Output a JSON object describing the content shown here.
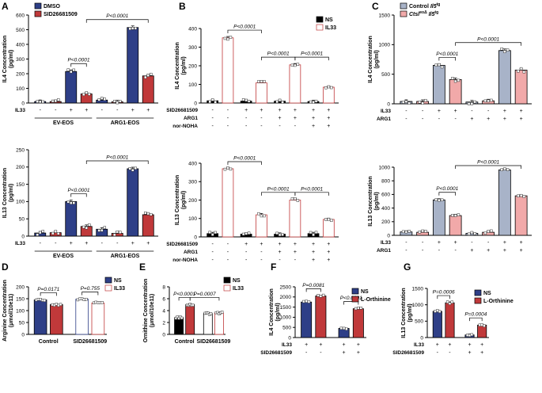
{
  "chart_data": [
    {
      "panel": "A",
      "type": "bar",
      "ylabel": "IL4 Concentration\n(pg/ml)",
      "ylim": [
        0,
        600
      ],
      "yticks": [
        0,
        100,
        200,
        300,
        400,
        500,
        600
      ],
      "legend": [
        {
          "name": "DMSO",
          "color": "#2e3f87"
        },
        {
          "name": "SID26681509",
          "color": "#c0393a"
        }
      ],
      "legend_position": "top-left",
      "conditions": {
        "IL33": [
          "-",
          "-",
          "+",
          "+",
          "-",
          "-",
          "+",
          "+"
        ]
      },
      "groups": [
        "EV-EOS",
        "ARG1-EOS"
      ],
      "series": [
        {
          "name": "DMSO",
          "values": [
            10,
            215,
            20,
            515
          ]
        },
        {
          "name": "SID26681509",
          "values": [
            10,
            62,
            8,
            185
          ]
        }
      ],
      "annotations": [
        {
          "text": "P<0.0001",
          "between": [
            2,
            3
          ]
        },
        {
          "text": "P<0.0001",
          "between": [
            3,
            7
          ]
        }
      ]
    },
    {
      "panel": "A",
      "type": "bar",
      "ylabel": "IL13 Concentration\n(pg/ml)",
      "ylim": [
        0,
        250
      ],
      "yticks": [
        0,
        50,
        100,
        150,
        200,
        250
      ],
      "conditions": {
        "IL33": [
          "-",
          "-",
          "+",
          "+",
          "-",
          "-",
          "+",
          "+"
        ]
      },
      "groups": [
        "EV-EOS",
        "ARG1-EOS"
      ],
      "series": [
        {
          "name": "DMSO",
          "values": [
            9,
            100,
            20,
            195
          ]
        },
        {
          "name": "SID26681509",
          "values": [
            10,
            28,
            8,
            62
          ]
        }
      ],
      "annotations": [
        {
          "text": "P<0.0001",
          "between": [
            2,
            3
          ]
        },
        {
          "text": "P<0.0001",
          "between": [
            3,
            7
          ]
        }
      ]
    },
    {
      "panel": "B",
      "type": "bar",
      "ylabel": "IL4 Concentration\n(pg/ml)",
      "ylim": [
        0,
        400
      ],
      "yticks": [
        0,
        100,
        200,
        300,
        400
      ],
      "legend": [
        {
          "name": "NS",
          "color": "#000000"
        },
        {
          "name": "IL33",
          "color": "#c0393a"
        }
      ],
      "legend_position": "top-right",
      "conditions": {
        "SID26681509": [
          "-",
          "-",
          "+",
          "+",
          "+",
          "+",
          "+",
          "+"
        ],
        "ARG1": [
          "-",
          "-",
          "-",
          "-",
          "+",
          "+",
          "+",
          "+"
        ],
        "nor-NOHA": [
          "-",
          "-",
          "-",
          "-",
          "-",
          "-",
          "+",
          "+"
        ]
      },
      "series": [
        {
          "name": "NS",
          "values": [
            12,
            10,
            10,
            8
          ]
        },
        {
          "name": "IL33",
          "values": [
            350,
            108,
            205,
            85
          ]
        }
      ],
      "annotations": [
        {
          "text": "P<0.0001",
          "between": [
            1,
            3
          ]
        },
        {
          "text": "P<0.0001",
          "between": [
            3,
            5
          ]
        },
        {
          "text": "P<0.0001",
          "between": [
            5,
            7
          ]
        }
      ]
    },
    {
      "panel": "B",
      "type": "bar",
      "ylabel": "IL13 Concentration\n(pg/ml)",
      "ylim": [
        0,
        400
      ],
      "yticks": [
        0,
        100,
        200,
        300,
        400
      ],
      "conditions": {
        "SID26681509": [
          "-",
          "-",
          "+",
          "+",
          "+",
          "+",
          "+",
          "+"
        ],
        "ARG1": [
          "-",
          "-",
          "-",
          "-",
          "+",
          "+",
          "+",
          "+"
        ],
        "nor-NOHA": [
          "-",
          "-",
          "-",
          "-",
          "-",
          "-",
          "+",
          "+"
        ]
      },
      "series": [
        {
          "name": "NS",
          "values": [
            18,
            15,
            15,
            18
          ]
        },
        {
          "name": "IL33",
          "values": [
            370,
            120,
            200,
            95
          ]
        }
      ],
      "annotations": [
        {
          "text": "P<0.0001",
          "between": [
            1,
            3
          ]
        },
        {
          "text": "P<0.0001",
          "between": [
            3,
            5
          ]
        },
        {
          "text": "P<0.0001",
          "between": [
            5,
            7
          ]
        }
      ]
    },
    {
      "panel": "C",
      "type": "bar",
      "ylabel": "IL4 Concentration\n(pg/ml)",
      "ylim": [
        0,
        1500
      ],
      "yticks": [
        0,
        500,
        1000,
        1500
      ],
      "legend": [
        {
          "name": "Control ",
          "name_italic": "Il5",
          "sup": "tg",
          "color": "#a8b3c8"
        },
        {
          "name": "Ctsl",
          "name_is_italic": true,
          "sup_mid": "eoΔ",
          "name_italic": " Il5",
          "sup": "tg",
          "color": "#f1a9a9"
        }
      ],
      "legend_position": "top-left",
      "conditions": {
        "IL33": [
          "-",
          "-",
          "+",
          "+",
          "-",
          "-",
          "+",
          "+"
        ],
        "ARG1": [
          "-",
          "-",
          "-",
          "-",
          "+",
          "+",
          "+",
          "+"
        ]
      },
      "series": [
        {
          "name": "Control",
          "values": [
            40,
            650,
            30,
            900
          ]
        },
        {
          "name": "Ctsl eoΔ",
          "values": [
            40,
            410,
            50,
            570
          ]
        }
      ],
      "annotations": [
        {
          "text": "P<0.0001",
          "between": [
            2,
            3
          ]
        },
        {
          "text": "P<0.0001",
          "between": [
            3,
            7
          ]
        }
      ]
    },
    {
      "panel": "C",
      "type": "bar",
      "ylabel": "IL13 Concentration\n(pg/ml)",
      "ylim": [
        0,
        1000
      ],
      "yticks": [
        0,
        200,
        400,
        600,
        800,
        1000
      ],
      "conditions": {
        "IL33": [
          "-",
          "-",
          "+",
          "+",
          "-",
          "-",
          "+",
          "+"
        ],
        "ARG1": [
          "-",
          "-",
          "-",
          "-",
          "+",
          "+",
          "+",
          "+"
        ]
      },
      "series": [
        {
          "name": "Control",
          "values": [
            50,
            520,
            30,
            960
          ]
        },
        {
          "name": "Ctsl eoΔ",
          "values": [
            45,
            290,
            45,
            580
          ]
        }
      ],
      "annotations": [
        {
          "text": "P<0.0001",
          "between": [
            2,
            3
          ]
        },
        {
          "text": "P<0.0001",
          "between": [
            3,
            7
          ]
        }
      ]
    },
    {
      "panel": "D",
      "type": "bar",
      "ylabel": "Arginine Concentration\n(μmol/10e11)",
      "ylim": [
        0,
        200
      ],
      "yticks": [
        0,
        50,
        100,
        150,
        200
      ],
      "legend": [
        {
          "name": "NS",
          "color": "#2e3f87"
        },
        {
          "name": "IL33",
          "color": "#c0393a"
        }
      ],
      "legend_position": "top-right",
      "categories": [
        "Control",
        "SID26681509"
      ],
      "series": [
        {
          "name": "NS",
          "values": [
            145,
            148
          ]
        },
        {
          "name": "IL33",
          "values": [
            125,
            132
          ]
        }
      ],
      "annotations": [
        {
          "text": "P=0.0171",
          "between": [
            0,
            1
          ]
        },
        {
          "text": "P=0.755",
          "between": [
            2,
            3
          ]
        }
      ]
    },
    {
      "panel": "E",
      "type": "bar",
      "ylabel": "Ornithine Concentration\n(μmol/10e11)",
      "ylim": [
        0,
        8
      ],
      "yticks": [
        0,
        2,
        4,
        6,
        8
      ],
      "legend": [
        {
          "name": "NS",
          "color": "#000000"
        },
        {
          "name": "IL33",
          "color": "#c0393a"
        }
      ],
      "legend_position": "top-right",
      "categories": [
        "Control",
        "SID26681509"
      ],
      "series": [
        {
          "name": "NS",
          "values": [
            2.8,
            3.5
          ]
        },
        {
          "name": "IL33",
          "values": [
            5.0,
            3.6
          ]
        }
      ],
      "annotations": [
        {
          "text": "P<0.0001",
          "between": [
            0,
            1
          ]
        },
        {
          "text": "P=0.0007",
          "between": [
            1,
            3
          ]
        }
      ]
    },
    {
      "panel": "F",
      "type": "bar",
      "ylabel": "IL4 Concentration\n(pg/ml)",
      "ylim": [
        0,
        2500
      ],
      "yticks": [
        0,
        500,
        1000,
        1500,
        2000,
        2500
      ],
      "legend": [
        {
          "name": "NS",
          "color": "#2e3f87"
        },
        {
          "name": "L-Orthinine",
          "color": "#c0393a"
        }
      ],
      "legend_position": "right",
      "conditions": {
        "IL33": [
          "+",
          "+",
          "+",
          "+"
        ],
        "SID26681509": [
          "-",
          "-",
          "+",
          "+"
        ]
      },
      "series": [
        {
          "name": "NS",
          "values": [
            1750,
            450
          ]
        },
        {
          "name": "L-Orthinine",
          "values": [
            2050,
            1420
          ]
        }
      ],
      "annotations": [
        {
          "text": "P=0.0081",
          "between": [
            0,
            1
          ]
        },
        {
          "text": "P<0.0001",
          "between": [
            2,
            3
          ]
        }
      ]
    },
    {
      "panel": "G",
      "type": "bar",
      "ylabel": "IL13 Concentration\n(pg/ml)",
      "ylim": [
        0,
        1500
      ],
      "yticks": [
        0,
        500,
        1000,
        1500
      ],
      "legend": [
        {
          "name": "NS",
          "color": "#2e3f87"
        },
        {
          "name": "L-Orthinine",
          "color": "#c0393a"
        }
      ],
      "legend_position": "right",
      "conditions": {
        "IL33": [
          "+",
          "+",
          "+",
          "+"
        ],
        "SID26681509": [
          "-",
          "-",
          "+",
          "+"
        ]
      },
      "series": [
        {
          "name": "NS",
          "values": [
            800,
            80
          ]
        },
        {
          "name": "L-Orthinine",
          "values": [
            1060,
            380
          ]
        }
      ],
      "annotations": [
        {
          "text": "P=0.0006",
          "between": [
            0,
            1
          ]
        },
        {
          "text": "P=0.0004",
          "between": [
            2,
            3
          ]
        }
      ]
    }
  ]
}
